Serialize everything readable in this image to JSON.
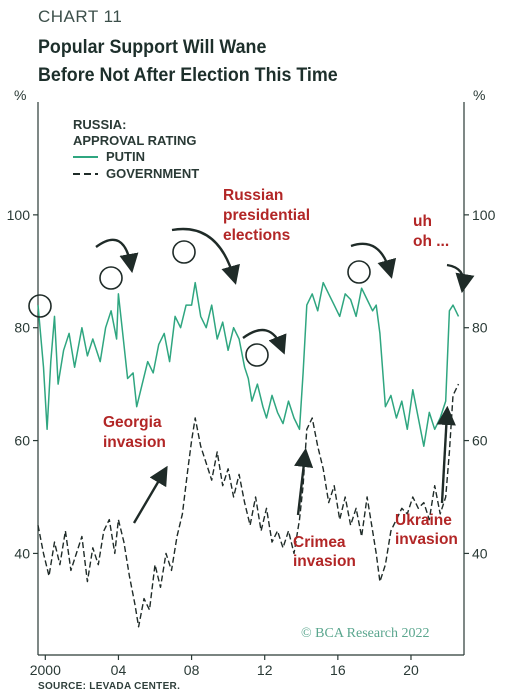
{
  "header": {
    "chart_number": "CHART 11",
    "title_line1": "Popular Support Will Wane",
    "title_line2": "Before Not After Election This Time"
  },
  "source": "SOURCE: LEVADA CENTER.",
  "watermark": "© BCA Research 2022",
  "colors": {
    "putin": "#2fa680",
    "government": "#1f2b28",
    "annotation": "#b22626",
    "axis": "#2a3a36"
  },
  "chart_data": {
    "type": "line",
    "ylabel_left": "%",
    "ylabel_right": "%",
    "ylim": [
      22,
      120
    ],
    "xlim": [
      1999.6,
      2022.9
    ],
    "yticks": [
      40,
      60,
      80,
      100
    ],
    "xticks": [
      {
        "value": 2000,
        "label": "2000"
      },
      {
        "value": 2004,
        "label": "04"
      },
      {
        "value": 2008,
        "label": "08"
      },
      {
        "value": 2012,
        "label": "12"
      },
      {
        "value": 2016,
        "label": "16"
      },
      {
        "value": 2020,
        "label": "20"
      }
    ],
    "legend": {
      "title_line1": "RUSSIA:",
      "title_line2": "APPROVAL RATING",
      "items": [
        "PUTIN",
        "GOVERNMENT"
      ]
    },
    "series": [
      {
        "name": "PUTIN",
        "style": "solid",
        "x": [
          1999.6,
          1999.9,
          2000.1,
          2000.3,
          2000.5,
          2000.7,
          2001.0,
          2001.3,
          2001.6,
          2002.0,
          2002.3,
          2002.6,
          2003.0,
          2003.3,
          2003.6,
          2003.9,
          2004.0,
          2004.2,
          2004.5,
          2004.8,
          2005.0,
          2005.3,
          2005.6,
          2005.9,
          2006.2,
          2006.5,
          2006.8,
          2007.1,
          2007.4,
          2007.7,
          2008.0,
          2008.2,
          2008.5,
          2008.8,
          2009.1,
          2009.4,
          2009.7,
          2010.0,
          2010.3,
          2010.6,
          2010.9,
          2011.1,
          2011.3,
          2011.6,
          2011.9,
          2012.1,
          2012.4,
          2012.7,
          2013.0,
          2013.3,
          2013.6,
          2013.9,
          2014.1,
          2014.3,
          2014.6,
          2014.9,
          2015.2,
          2015.5,
          2015.8,
          2016.1,
          2016.4,
          2016.7,
          2017.0,
          2017.3,
          2017.6,
          2017.9,
          2018.1,
          2018.3,
          2018.6,
          2018.9,
          2019.2,
          2019.5,
          2019.8,
          2020.1,
          2020.4,
          2020.7,
          2021.0,
          2021.3,
          2021.6,
          2021.9,
          2022.1,
          2022.3,
          2022.6
        ],
        "values": [
          84,
          73,
          62,
          74,
          82,
          70,
          76,
          79,
          73,
          80,
          75,
          78,
          74,
          80,
          83,
          78,
          86,
          80,
          71,
          72,
          66,
          70,
          74,
          72,
          77,
          79,
          74,
          82,
          80,
          84,
          84,
          88,
          82,
          80,
          84,
          78,
          81,
          76,
          80,
          78,
          73,
          71,
          67,
          70,
          66,
          64,
          68,
          65,
          63,
          67,
          64,
          62,
          72,
          84,
          86,
          83,
          88,
          86,
          84,
          82,
          86,
          85,
          82,
          87,
          85,
          83,
          84,
          79,
          66,
          68,
          64,
          67,
          62,
          69,
          64,
          59,
          65,
          62,
          64,
          67,
          83,
          84,
          82
        ]
      },
      {
        "name": "GOVERNMENT",
        "style": "dashed",
        "x": [
          1999.6,
          1999.9,
          2000.2,
          2000.5,
          2000.8,
          2001.1,
          2001.4,
          2001.7,
          2002.0,
          2002.3,
          2002.6,
          2002.9,
          2003.2,
          2003.5,
          2003.8,
          2004.0,
          2004.3,
          2004.6,
          2004.9,
          2005.1,
          2005.4,
          2005.7,
          2006.0,
          2006.3,
          2006.6,
          2006.9,
          2007.2,
          2007.5,
          2007.8,
          2008.0,
          2008.2,
          2008.5,
          2008.8,
          2009.1,
          2009.4,
          2009.7,
          2010.0,
          2010.3,
          2010.6,
          2010.9,
          2011.2,
          2011.5,
          2011.8,
          2012.1,
          2012.4,
          2012.7,
          2013.0,
          2013.3,
          2013.6,
          2013.9,
          2014.1,
          2014.3,
          2014.6,
          2014.9,
          2015.2,
          2015.5,
          2015.8,
          2016.1,
          2016.4,
          2016.7,
          2017.0,
          2017.3,
          2017.6,
          2017.9,
          2018.1,
          2018.3,
          2018.6,
          2018.9,
          2019.2,
          2019.5,
          2019.8,
          2020.1,
          2020.4,
          2020.7,
          2021.0,
          2021.3,
          2021.6,
          2021.9,
          2022.1,
          2022.3,
          2022.6
        ],
        "values": [
          45,
          40,
          36,
          42,
          38,
          44,
          37,
          40,
          43,
          35,
          41,
          38,
          44,
          46,
          40,
          46,
          42,
          36,
          31,
          27,
          32,
          30,
          38,
          34,
          40,
          37,
          43,
          47,
          55,
          60,
          64,
          59,
          56,
          53,
          58,
          52,
          55,
          50,
          54,
          49,
          45,
          50,
          44,
          48,
          42,
          44,
          41,
          44,
          40,
          46,
          52,
          62,
          64,
          59,
          55,
          49,
          52,
          46,
          50,
          45,
          48,
          43,
          50,
          44,
          40,
          35,
          38,
          44,
          46,
          48,
          47,
          50,
          48,
          49,
          46,
          52,
          47,
          50,
          58,
          68,
          70
        ]
      }
    ],
    "annotations": [
      {
        "lines": [
          "Russian",
          "presidential",
          "elections"
        ]
      },
      {
        "lines": [
          "uh",
          "oh ..."
        ]
      },
      {
        "lines": [
          "Georgia",
          "invasion"
        ]
      },
      {
        "lines": [
          "Crimea",
          "invasion"
        ]
      },
      {
        "lines": [
          "Ukraine",
          "invasion"
        ]
      }
    ]
  }
}
